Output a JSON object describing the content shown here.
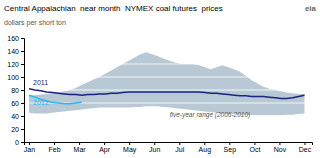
{
  "chart_data": {
    "type": "line",
    "title": "Central Appalachian  near month  NYMEX coal futures  prices",
    "y_label": "dollars per short ton",
    "annotations": [
      "eia"
    ],
    "xlim": [
      -0.2,
      11.3
    ],
    "xticks": [
      {
        "value": 0,
        "label": "Jan"
      },
      {
        "value": 1,
        "label": "Feb"
      },
      {
        "value": 2,
        "label": "Mar"
      },
      {
        "value": 3,
        "label": "Apr"
      },
      {
        "value": 4,
        "label": "May"
      },
      {
        "value": 5,
        "label": "Jun"
      },
      {
        "value": 6,
        "label": "Jul"
      },
      {
        "value": 7,
        "label": "Aug"
      },
      {
        "value": 8,
        "label": "Sep"
      },
      {
        "value": 9,
        "label": "Oct"
      },
      {
        "value": 10,
        "label": "Nov"
      },
      {
        "value": 11,
        "label": "Dec"
      }
    ],
    "ylim": [
      0,
      160
    ],
    "yticks": [
      0,
      20,
      40,
      60,
      80,
      100,
      120,
      140,
      160
    ],
    "grid": true,
    "series": [
      {
        "name": "five-year range (2006-2010)",
        "type": "area",
        "color": "#b8c8d4",
        "x": [
          0,
          0.234043,
          0.468085,
          0.702128,
          0.93617,
          1.170213,
          1.404255,
          1.638298,
          1.87234,
          2.106383,
          2.340426,
          2.574468,
          2.808511,
          3.042553,
          3.276596,
          3.510638,
          3.744681,
          3.978723,
          4.212766,
          4.446809,
          4.680851,
          4.914894,
          5.148936,
          5.382979,
          5.617021,
          5.851064,
          6.085106,
          6.319149,
          6.553191,
          6.787234,
          7.021277,
          7.255319,
          7.489362,
          7.723404,
          7.957447,
          8.191489,
          8.425532,
          8.659574,
          8.893617,
          9.12766,
          9.361702,
          9.595745,
          9.829787,
          10.06383,
          10.297872,
          10.531915,
          10.765957,
          11
        ],
        "upper": [
          72,
          72,
          73,
          74,
          75,
          76,
          78,
          80,
          83,
          88,
          92,
          96,
          100,
          105,
          110,
          115,
          120,
          125,
          130,
          135,
          138,
          135,
          132,
          128,
          125,
          122,
          120,
          120,
          120,
          118,
          115,
          112,
          115,
          118,
          115,
          112,
          108,
          102,
          95,
          90,
          85,
          82,
          80,
          78,
          76,
          75,
          74,
          74
        ],
        "lower": [
          45,
          44,
          44,
          44,
          45,
          46,
          47,
          48,
          49,
          50,
          51,
          52,
          53,
          53,
          53,
          53,
          53,
          53,
          54,
          54,
          55,
          55,
          55,
          54,
          53,
          52,
          51,
          50,
          49,
          48,
          47,
          46,
          45,
          44,
          43,
          43,
          42,
          42,
          41,
          41,
          41,
          41,
          41,
          41,
          42,
          42,
          43,
          44
        ]
      },
      {
        "name": "2011",
        "type": "line",
        "color": "#1a237e",
        "x": [
          0,
          0.234043,
          0.468085,
          0.702128,
          0.93617,
          1.170213,
          1.404255,
          1.638298,
          1.87234,
          2.106383,
          2.340426,
          2.574468,
          2.808511,
          3.042553,
          3.276596,
          3.510638,
          3.744681,
          3.978723,
          4.212766,
          4.446809,
          4.680851,
          4.914894,
          5.148936,
          5.382979,
          5.617021,
          5.851064,
          6.085106,
          6.319149,
          6.553191,
          6.787234,
          7.021277,
          7.255319,
          7.489362,
          7.723404,
          7.957447,
          8.191489,
          8.425532,
          8.659574,
          8.893617,
          9.12766,
          9.361702,
          9.595745,
          9.829787,
          10.06383,
          10.297872,
          10.531915,
          10.765957,
          11
        ],
        "values": [
          82,
          80,
          79,
          77,
          76,
          75,
          74,
          73,
          73,
          72,
          73,
          73,
          74,
          74,
          75,
          75,
          76,
          77,
          77,
          77,
          77,
          77,
          77,
          77,
          77,
          77,
          77,
          77,
          77,
          77,
          76,
          75,
          75,
          74,
          73,
          72,
          71,
          71,
          70,
          70,
          70,
          69,
          68,
          67,
          67,
          68,
          70,
          72
        ]
      },
      {
        "name": "2012",
        "type": "line",
        "color": "#29b6f6",
        "x": [
          0,
          0.234043,
          0.468085,
          0.702128,
          0.93617,
          1.170213,
          1.404255,
          1.638298,
          1.87234,
          2.106383
        ],
        "values": [
          72,
          69,
          66,
          63,
          61,
          60,
          59,
          59,
          60,
          61
        ]
      }
    ]
  }
}
